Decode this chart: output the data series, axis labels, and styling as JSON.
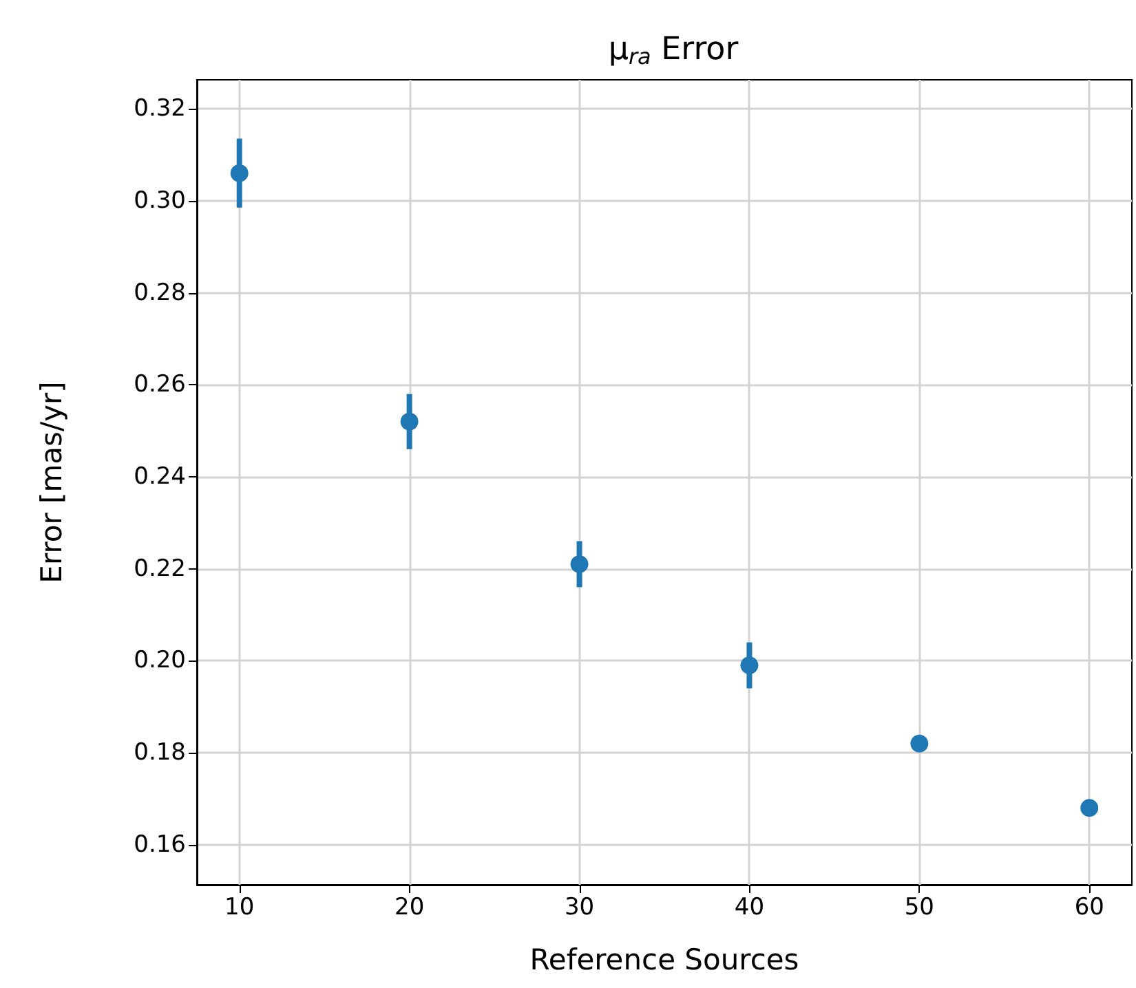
{
  "chart_data": {
    "type": "scatter",
    "title": "μ$_{ra}$ Error",
    "xlabel": "Reference Sources",
    "ylabel": "Error [mas/yr]",
    "x": [
      10,
      20,
      30,
      40,
      50,
      60
    ],
    "values": [
      0.306,
      0.252,
      0.221,
      0.199,
      0.182,
      0.168
    ],
    "errors": [
      0.0075,
      0.006,
      0.005,
      0.005,
      0.0015,
      0.0015
    ],
    "color": "#1f77b4",
    "xlim": [
      7.5,
      62.5
    ],
    "xticks": [
      10,
      20,
      30,
      40,
      50,
      60
    ],
    "ylim": [
      0.1513,
      0.3263
    ],
    "yticks": [
      0.16,
      0.18,
      {
        "value": 0.2,
        "label": "0.20"
      },
      0.22,
      0.24,
      0.26,
      0.28,
      {
        "value": 0.3,
        "label": "0.30"
      },
      0.32
    ],
    "grid": true,
    "marker": "circle"
  }
}
